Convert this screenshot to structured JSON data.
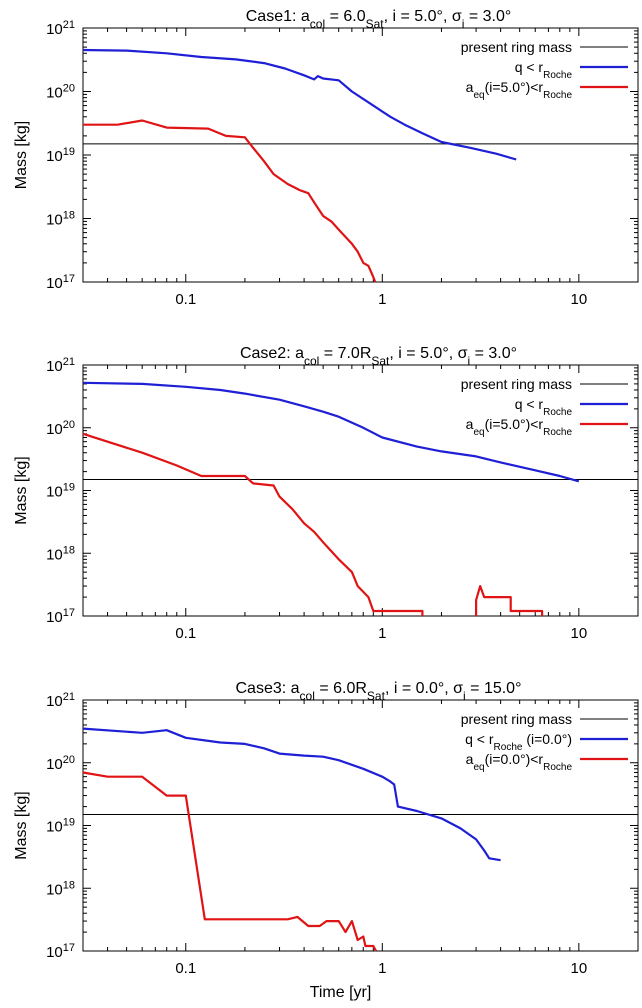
{
  "chart_data": [
    {
      "type": "line",
      "title_parts": [
        {
          "t": "Case1: a",
          "s": "n"
        },
        {
          "t": "col",
          "s": "sub"
        },
        {
          "t": " = 6.0",
          "s": "n"
        },
        {
          "t": "Sat",
          "s": "sub"
        },
        {
          "t": ", i = 5.0°, σ",
          "s": "n"
        },
        {
          "t": "i",
          "s": "sub"
        },
        {
          "t": " = 3.0°",
          "s": "n"
        }
      ],
      "xlabel": "",
      "ylabel": "Mass [kg]",
      "xscale": "log",
      "yscale": "log",
      "xlim": [
        0.03,
        20
      ],
      "ylim": [
        1e+17,
        1e+21
      ],
      "x_tick_labels": [
        "0.1",
        "1",
        "10"
      ],
      "y_tick_exponents": [
        "17",
        "18",
        "19",
        "20",
        "21"
      ],
      "y_tick_base": "10",
      "reference_line": {
        "y": 1.5e+19,
        "label": "present ring mass",
        "color": "#000000"
      },
      "legend_position": "top-right",
      "series": [
        {
          "label_parts": [
            {
              "t": "q < r",
              "s": "n"
            },
            {
              "t": "Roche",
              "s": "sub"
            }
          ],
          "color": "#1f1fd6",
          "points": [
            [
              0.03,
              4.5e+20
            ],
            [
              0.05,
              4.4e+20
            ],
            [
              0.08,
              4e+20
            ],
            [
              0.12,
              3.5e+20
            ],
            [
              0.18,
              3.2e+20
            ],
            [
              0.25,
              2.8e+20
            ],
            [
              0.32,
              2.3e+20
            ],
            [
              0.4,
              1.8e+20
            ],
            [
              0.45,
              1.55e+20
            ],
            [
              0.47,
              1.75e+20
            ],
            [
              0.5,
              1.6e+20
            ],
            [
              0.6,
              1.5e+20
            ],
            [
              0.7,
              1e+20
            ],
            [
              0.9,
              6e+19
            ],
            [
              1.1,
              4e+19
            ],
            [
              1.3,
              3e+19
            ],
            [
              1.6,
              2.2e+19
            ],
            [
              2.0,
              1.6e+19
            ],
            [
              2.8,
              1.3e+19
            ],
            [
              3.8,
              1.05e+19
            ],
            [
              4.8,
              8.5e+18
            ]
          ]
        },
        {
          "label_parts": [
            {
              "t": "a",
              "s": "n"
            },
            {
              "t": "eq",
              "s": "sub"
            },
            {
              "t": "(i=5.0°)<r",
              "s": "n"
            },
            {
              "t": "Roche",
              "s": "sub"
            }
          ],
          "color": "#e01414",
          "points": [
            [
              0.03,
              3e+19
            ],
            [
              0.045,
              3e+19
            ],
            [
              0.06,
              3.5e+19
            ],
            [
              0.08,
              2.7e+19
            ],
            [
              0.13,
              2.6e+19
            ],
            [
              0.16,
              2e+19
            ],
            [
              0.2,
              1.9e+19
            ],
            [
              0.22,
              1.3e+19
            ],
            [
              0.25,
              8e+18
            ],
            [
              0.28,
              5e+18
            ],
            [
              0.33,
              3.5e+18
            ],
            [
              0.38,
              2.8e+18
            ],
            [
              0.42,
              2.5e+18
            ],
            [
              0.45,
              1.8e+18
            ],
            [
              0.5,
              1.1e+18
            ],
            [
              0.55,
              9e+17
            ],
            [
              0.62,
              6e+17
            ],
            [
              0.7,
              4e+17
            ],
            [
              0.75,
              3e+17
            ],
            [
              0.8,
              2e+17
            ],
            [
              0.85,
              1.8e+17
            ],
            [
              0.9,
              1.2e+17
            ],
            [
              0.92,
              1e+17
            ]
          ]
        }
      ]
    },
    {
      "type": "line",
      "title_parts": [
        {
          "t": "Case2: a",
          "s": "n"
        },
        {
          "t": "col",
          "s": "sub"
        },
        {
          "t": " = 7.0R",
          "s": "n"
        },
        {
          "t": "Sat",
          "s": "sub"
        },
        {
          "t": ", i = 5.0°, σ",
          "s": "n"
        },
        {
          "t": "i",
          "s": "sub"
        },
        {
          "t": " = 3.0°",
          "s": "n"
        }
      ],
      "xlabel": "",
      "ylabel": "Mass [kg]",
      "xscale": "log",
      "yscale": "log",
      "xlim": [
        0.03,
        20
      ],
      "ylim": [
        1e+17,
        1e+21
      ],
      "x_tick_labels": [
        "0.1",
        "1",
        "10"
      ],
      "y_tick_exponents": [
        "17",
        "18",
        "19",
        "20",
        "21"
      ],
      "y_tick_base": "10",
      "reference_line": {
        "y": 1.5e+19,
        "label": "present ring mass",
        "color": "#000000"
      },
      "legend_position": "top-right",
      "series": [
        {
          "label_parts": [
            {
              "t": "q < r",
              "s": "n"
            },
            {
              "t": "Roche",
              "s": "sub"
            }
          ],
          "color": "#1f1fd6",
          "points": [
            [
              0.03,
              5.2e+20
            ],
            [
              0.06,
              5e+20
            ],
            [
              0.1,
              4.5e+20
            ],
            [
              0.15,
              4e+20
            ],
            [
              0.2,
              3.5e+20
            ],
            [
              0.3,
              2.8e+20
            ],
            [
              0.4,
              2.2e+20
            ],
            [
              0.5,
              1.8e+20
            ],
            [
              0.6,
              1.5e+20
            ],
            [
              0.8,
              1e+20
            ],
            [
              1.0,
              7e+19
            ],
            [
              1.5,
              5e+19
            ],
            [
              2.0,
              4.2e+19
            ],
            [
              3.0,
              3.5e+19
            ],
            [
              4.0,
              2.8e+19
            ],
            [
              6.0,
              2.1e+19
            ],
            [
              8.0,
              1.7e+19
            ],
            [
              10.0,
              1.4e+19
            ]
          ]
        },
        {
          "label_parts": [
            {
              "t": "a",
              "s": "n"
            },
            {
              "t": "eq",
              "s": "sub"
            },
            {
              "t": "(i=5.0°)<r",
              "s": "n"
            },
            {
              "t": "Roche",
              "s": "sub"
            }
          ],
          "color": "#e01414",
          "points": [
            [
              0.03,
              8e+19
            ],
            [
              0.04,
              6e+19
            ],
            [
              0.06,
              4e+19
            ],
            [
              0.09,
              2.5e+19
            ],
            [
              0.12,
              1.7e+19
            ],
            [
              0.2,
              1.7e+19
            ],
            [
              0.22,
              1.3e+19
            ],
            [
              0.28,
              1.2e+19
            ],
            [
              0.3,
              8e+18
            ],
            [
              0.35,
              5e+18
            ],
            [
              0.4,
              3e+18
            ],
            [
              0.45,
              2.2e+18
            ],
            [
              0.5,
              1.5e+18
            ],
            [
              0.6,
              8e+17
            ],
            [
              0.7,
              5e+17
            ],
            [
              0.75,
              3e+17
            ],
            [
              0.85,
              2e+17
            ],
            [
              0.9,
              1.2e+17
            ],
            [
              1.6,
              1.2e+17
            ],
            [
              1.6,
              1e+17
            ]
          ]
        },
        {
          "label_parts": [],
          "color": "#e01414",
          "points": [
            [
              3.0,
              1e+17
            ],
            [
              3.0,
              1.8e+17
            ],
            [
              3.15,
              3e+17
            ],
            [
              3.3,
              2e+17
            ],
            [
              4.0,
              2e+17
            ],
            [
              4.5,
              2e+17
            ],
            [
              4.5,
              1.2e+17
            ],
            [
              4.6,
              1.2e+17
            ],
            [
              6.5,
              1.2e+17
            ],
            [
              6.5,
              1e+17
            ]
          ]
        }
      ]
    },
    {
      "type": "line",
      "title_parts": [
        {
          "t": "Case3: a",
          "s": "n"
        },
        {
          "t": "col",
          "s": "sub"
        },
        {
          "t": " = 6.0R",
          "s": "n"
        },
        {
          "t": "Sat",
          "s": "sub"
        },
        {
          "t": ", i = 0.0°, σ",
          "s": "n"
        },
        {
          "t": "i",
          "s": "sub"
        },
        {
          "t": " = 15.0°",
          "s": "n"
        }
      ],
      "xlabel": "Time [yr]",
      "ylabel": "Mass [kg]",
      "xscale": "log",
      "yscale": "log",
      "xlim": [
        0.03,
        20
      ],
      "ylim": [
        1e+17,
        1e+21
      ],
      "x_tick_labels": [
        "0.1",
        "1",
        "10"
      ],
      "y_tick_exponents": [
        "17",
        "18",
        "19",
        "20",
        "21"
      ],
      "y_tick_base": "10",
      "reference_line": {
        "y": 1.5e+19,
        "label": "present ring mass",
        "color": "#000000"
      },
      "legend_position": "top-right",
      "series": [
        {
          "label_parts": [
            {
              "t": "q < r",
              "s": "n"
            },
            {
              "t": "Roche",
              "s": "sub"
            },
            {
              "t": " (i=0.0°)",
              "s": "n"
            }
          ],
          "color": "#1f1fd6",
          "points": [
            [
              0.03,
              3.5e+20
            ],
            [
              0.06,
              3e+20
            ],
            [
              0.08,
              3.3e+20
            ],
            [
              0.1,
              2.5e+20
            ],
            [
              0.15,
              2.1e+20
            ],
            [
              0.2,
              2e+20
            ],
            [
              0.25,
              1.7e+20
            ],
            [
              0.3,
              1.4e+20
            ],
            [
              0.4,
              1.3e+20
            ],
            [
              0.5,
              1.25e+20
            ],
            [
              0.6,
              1.1e+20
            ],
            [
              0.8,
              8e+19
            ],
            [
              1.0,
              6e+19
            ],
            [
              1.1,
              5e+19
            ],
            [
              1.15,
              4.5e+19
            ],
            [
              1.2,
              2e+19
            ],
            [
              1.5,
              1.7e+19
            ],
            [
              2.0,
              1.3e+19
            ],
            [
              2.5,
              9e+18
            ],
            [
              3.0,
              6e+18
            ],
            [
              3.3,
              4e+18
            ],
            [
              3.5,
              3e+18
            ],
            [
              4.0,
              2.8e+18
            ]
          ]
        },
        {
          "label_parts": [
            {
              "t": "a",
              "s": "n"
            },
            {
              "t": "eq",
              "s": "sub"
            },
            {
              "t": "(i=0.0°)<r",
              "s": "n"
            },
            {
              "t": "Roche",
              "s": "sub"
            }
          ],
          "color": "#e01414",
          "points": [
            [
              0.03,
              7e+19
            ],
            [
              0.04,
              6e+19
            ],
            [
              0.06,
              6e+19
            ],
            [
              0.08,
              3e+19
            ],
            [
              0.1,
              3e+19
            ],
            [
              0.125,
              3.2e+17
            ],
            [
              0.2,
              3.2e+17
            ],
            [
              0.33,
              3.2e+17
            ],
            [
              0.37,
              3.5e+17
            ],
            [
              0.42,
              2.5e+17
            ],
            [
              0.48,
              2.5e+17
            ],
            [
              0.52,
              3e+17
            ],
            [
              0.6,
              3e+17
            ],
            [
              0.65,
              2e+17
            ],
            [
              0.7,
              3e+17
            ],
            [
              0.75,
              1.5e+17
            ],
            [
              0.8,
              1.7e+17
            ],
            [
              0.82,
              1.2e+17
            ],
            [
              0.9,
              1.2e+17
            ],
            [
              0.93,
              1e+17
            ]
          ]
        }
      ]
    }
  ]
}
